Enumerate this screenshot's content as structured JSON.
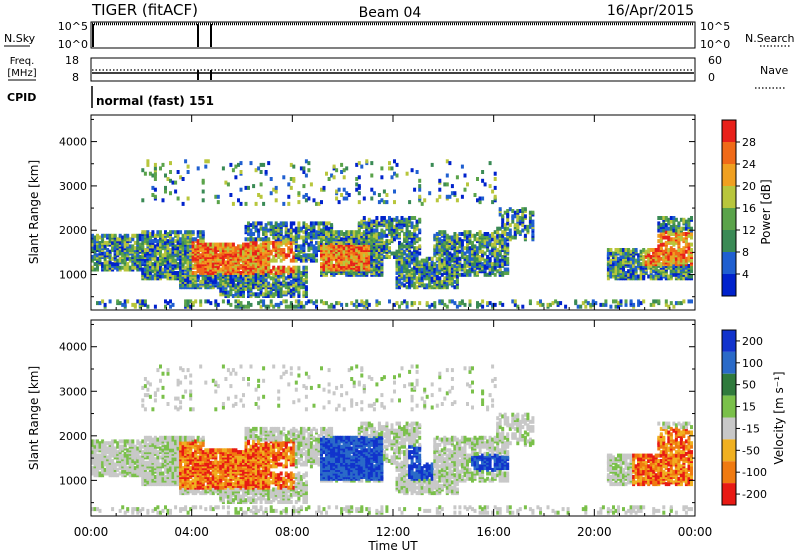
{
  "header": {
    "radar": "TIGER (fitACF)",
    "beam": "Beam 04",
    "date": "16/Apr/2015"
  },
  "aux_panels": {
    "nsky_label": "N.Sky",
    "nsky_ticks": [
      "10^5",
      "10^0"
    ],
    "nsearch_label": "N.Search",
    "nsearch_ticks": [
      "10^5",
      "10^0"
    ],
    "freq_label_1": "Freq.",
    "freq_label_2": "[MHz]",
    "freq_ticks": [
      "18",
      "8"
    ],
    "nave_label": "Nave",
    "nave_ticks": [
      "60",
      "0"
    ],
    "cpid_label": "CPID",
    "cpid_value": "normal (fast) 151"
  },
  "colors": {
    "power": [
      "#0022cc",
      "#1f5fd0",
      "#3a8a55",
      "#5aa34a",
      "#b8c63c",
      "#f0a020",
      "#f06a18",
      "#e8201a"
    ],
    "velocity": [
      "#1133cc",
      "#2a6ac8",
      "#2f7a3c",
      "#7ac04a",
      "#c8c8c8",
      "#f0b020",
      "#f07a10",
      "#e81a14"
    ]
  },
  "chart_data": [
    {
      "type": "heatmap",
      "quantity": "power",
      "ylabel": "Slant Range [km]",
      "y_ticks": [
        1000,
        2000,
        3000,
        4000
      ],
      "ylim": [
        200,
        4600
      ],
      "x_ticks": [
        "00:00",
        "04:00",
        "08:00",
        "12:00",
        "16:00",
        "20:00",
        "00:00"
      ],
      "xlim_hours": [
        0,
        24
      ],
      "colorbar_label": "Power [dB]",
      "colorbar_ticks": [
        "4",
        "8",
        "12",
        "16",
        "20",
        "24",
        "28"
      ],
      "colorbar_range": [
        0,
        32
      ]
    },
    {
      "type": "heatmap",
      "quantity": "velocity",
      "ylabel": "Slant Range [km]",
      "y_ticks": [
        1000,
        2000,
        3000,
        4000
      ],
      "ylim": [
        200,
        4600
      ],
      "x_ticks": [
        "00:00",
        "04:00",
        "08:00",
        "12:00",
        "16:00",
        "20:00",
        "00:00"
      ],
      "xlim_hours": [
        0,
        24
      ],
      "xlabel": "Time UT",
      "colorbar_label": "Velocity [m s⁻¹]",
      "colorbar_ticks": [
        "200",
        "100",
        "50",
        "15",
        "-15",
        "-50",
        "-100",
        "-200"
      ]
    }
  ]
}
